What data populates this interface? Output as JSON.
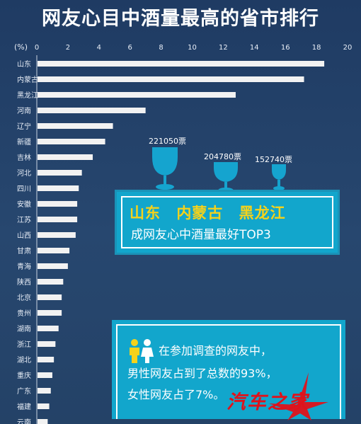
{
  "title": "网友心目中酒量最高的省市排行",
  "chart_data": {
    "type": "bar",
    "orientation": "horizontal",
    "unit_label": "(%)",
    "xlim": [
      0,
      20
    ],
    "x_ticks": [
      "0",
      "2",
      "4",
      "6",
      "8",
      "10",
      "12",
      "14",
      "16",
      "18",
      "20"
    ],
    "categories": [
      "山东",
      "内蒙古",
      "黑龙江",
      "河南",
      "辽宁",
      "新疆",
      "吉林",
      "河北",
      "四川",
      "安徽",
      "江苏",
      "山西",
      "甘肃",
      "青海",
      "陕西",
      "北京",
      "贵州",
      "湖南",
      "浙江",
      "湖北",
      "重庆",
      "广东",
      "福建",
      "云南"
    ],
    "values": [
      18.5,
      17.2,
      12.8,
      7.0,
      4.9,
      4.4,
      3.6,
      2.9,
      2.7,
      2.6,
      2.6,
      2.5,
      2.1,
      2.0,
      1.7,
      1.6,
      1.6,
      1.4,
      1.2,
      1.1,
      1.0,
      0.9,
      0.8,
      0.7
    ],
    "bar_color": "#f2f2f2"
  },
  "votes": {
    "first": "221050票",
    "second": "204780票",
    "third": "152740票"
  },
  "top3": {
    "names": [
      "山东",
      "内蒙古",
      "黑龙江"
    ],
    "caption": "成网友心中酒量最好TOP3"
  },
  "gender": {
    "line1": "在参加调查的网友中，",
    "line2": "男性网友占到了总数的93%，",
    "line3": "女性网友占了7%。"
  },
  "watermark": {
    "text": "汽车之家",
    "color": "#e0121a"
  },
  "colors": {
    "background": "#244267",
    "accent_box": "#12a6cc",
    "highlight_text": "#f5d21a",
    "glass": "#15a4cf"
  }
}
